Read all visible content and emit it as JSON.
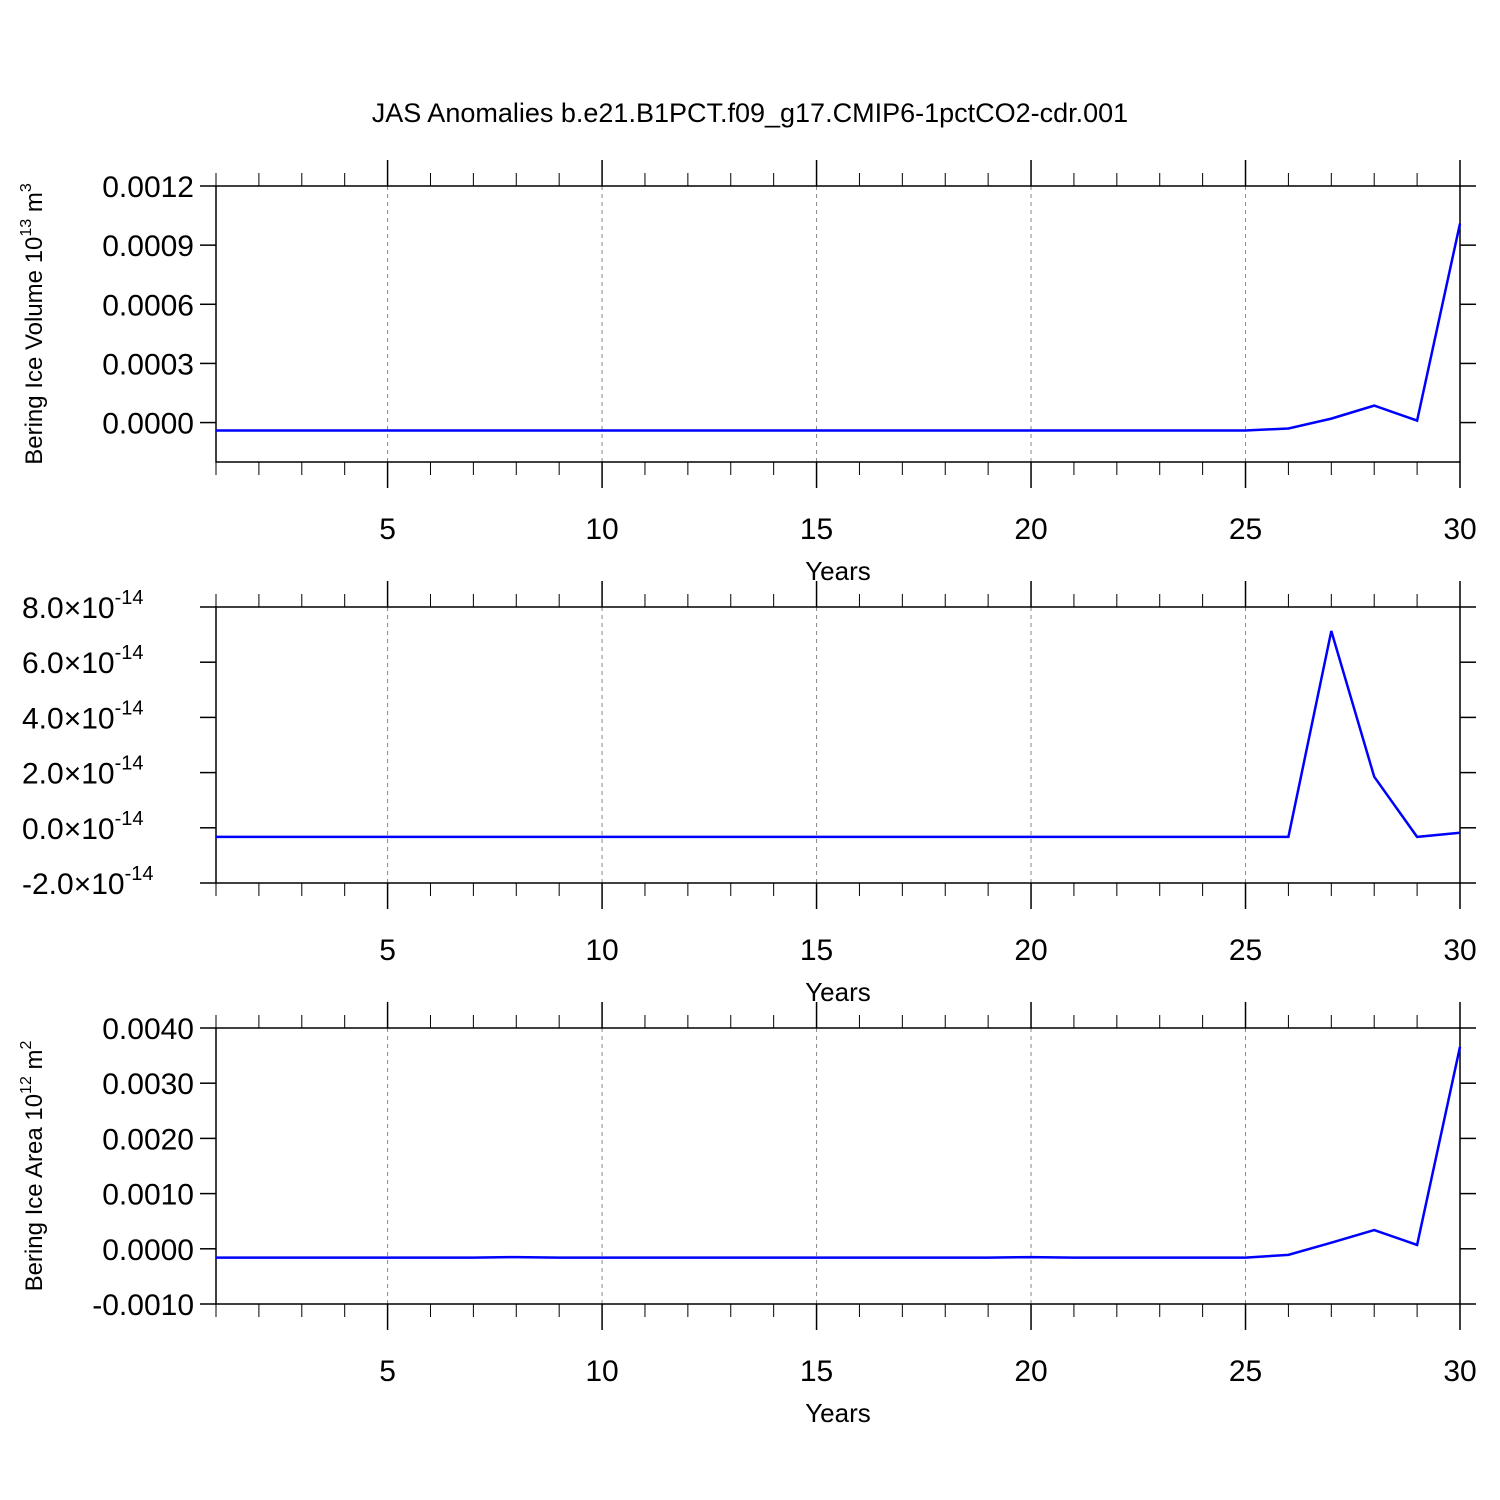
{
  "chart_data": [
    {
      "type": "line",
      "title": "JAS Anomalies b.e21.B1PCT.f09_g17.CMIP6-1pctCO2-cdr.001",
      "ylabel": [
        "Bering Ice Volume 10",
        "13",
        " m",
        "3"
      ],
      "xlabel": "Years",
      "x": [
        1,
        2,
        3,
        4,
        5,
        6,
        7,
        8,
        9,
        10,
        11,
        12,
        13,
        14,
        15,
        16,
        17,
        18,
        19,
        20,
        21,
        22,
        23,
        24,
        25,
        26,
        27,
        28,
        29,
        30
      ],
      "values": [
        -4e-05,
        -4e-05,
        -4e-05,
        -4e-05,
        -4e-05,
        -4e-05,
        -4e-05,
        -4e-05,
        -4e-05,
        -4e-05,
        -4e-05,
        -4e-05,
        -4e-05,
        -4e-05,
        -4e-05,
        -4e-05,
        -4e-05,
        -4e-05,
        -4e-05,
        -4e-05,
        -4e-05,
        -4e-05,
        -4e-05,
        -4e-05,
        -4e-05,
        -3e-05,
        2e-05,
        8.6e-05,
        1e-05,
        0.00101
      ],
      "color": "#0000ff",
      "xlim": [
        1,
        30
      ],
      "xticks": [
        5,
        10,
        15,
        20,
        25,
        30
      ],
      "xminorticks": [
        1,
        2,
        3,
        4,
        6,
        7,
        8,
        9,
        11,
        12,
        13,
        14,
        16,
        17,
        18,
        19,
        21,
        22,
        23,
        24,
        26,
        27,
        28,
        29
      ],
      "ylim": [
        -0.0002,
        0.0012
      ],
      "yticks": [
        {
          "value": 0,
          "label": "0.0000"
        },
        {
          "value": 0.0003,
          "label": "0.0003"
        },
        {
          "value": 0.0006,
          "label": "0.0006"
        },
        {
          "value": 0.0009,
          "label": "0.0009"
        },
        {
          "value": 0.0012,
          "label": "0.0012"
        }
      ],
      "grid": true
    },
    {
      "type": "line",
      "xlabel": "Years",
      "x": [
        1,
        2,
        3,
        4,
        5,
        6,
        7,
        8,
        9,
        10,
        11,
        12,
        13,
        14,
        15,
        16,
        17,
        18,
        19,
        20,
        21,
        22,
        23,
        24,
        25,
        26,
        27,
        28,
        29,
        30
      ],
      "values": [
        -3.3e-15,
        -3.3e-15,
        -3.3e-15,
        -3.3e-15,
        -3.3e-15,
        -3.3e-15,
        -3.3e-15,
        -3.3e-15,
        -3.3e-15,
        -3.3e-15,
        -3.3e-15,
        -3.3e-15,
        -3.3e-15,
        -3.3e-15,
        -3.3e-15,
        -3.3e-15,
        -3.3e-15,
        -3.3e-15,
        -3.3e-15,
        -3.3e-15,
        -3.3e-15,
        -3.3e-15,
        -3.3e-15,
        -3.3e-15,
        -3.3e-15,
        -3.3e-15,
        7.13e-14,
        1.85e-14,
        -3.3e-15,
        -1.8e-15
      ],
      "color": "#0000ff",
      "xlim": [
        1,
        30
      ],
      "xticks": [
        5,
        10,
        15,
        20,
        25,
        30
      ],
      "xminorticks": [
        1,
        2,
        3,
        4,
        6,
        7,
        8,
        9,
        11,
        12,
        13,
        14,
        16,
        17,
        18,
        19,
        21,
        22,
        23,
        24,
        26,
        27,
        28,
        29
      ],
      "ylim": [
        -2e-14,
        8e-14
      ],
      "yticks": [
        {
          "value": -2e-14,
          "label": [
            "-2.0×10",
            "-14"
          ]
        },
        {
          "value": 0,
          "label": [
            "0.0×10",
            "-14"
          ]
        },
        {
          "value": 2e-14,
          "label": [
            "2.0×10",
            "-14"
          ]
        },
        {
          "value": 4e-14,
          "label": [
            "4.0×10",
            "-14"
          ]
        },
        {
          "value": 6e-14,
          "label": [
            "6.0×10",
            "-14"
          ]
        },
        {
          "value": 8e-14,
          "label": [
            "8.0×10",
            "-14"
          ]
        }
      ],
      "grid": true
    },
    {
      "type": "line",
      "ylabel": [
        "Bering Ice Area 10",
        "12",
        " m",
        "2"
      ],
      "xlabel": "Years",
      "x": [
        1,
        2,
        3,
        4,
        5,
        6,
        7,
        8,
        9,
        10,
        11,
        12,
        13,
        14,
        15,
        16,
        17,
        18,
        19,
        20,
        21,
        22,
        23,
        24,
        25,
        26,
        27,
        28,
        29,
        30
      ],
      "values": [
        -0.00016,
        -0.00016,
        -0.00016,
        -0.00016,
        -0.00016,
        -0.00016,
        -0.00016,
        -0.00015,
        -0.00016,
        -0.00016,
        -0.00016,
        -0.00016,
        -0.00016,
        -0.00016,
        -0.00016,
        -0.00016,
        -0.00016,
        -0.00016,
        -0.00016,
        -0.00015,
        -0.00016,
        -0.00016,
        -0.00016,
        -0.00016,
        -0.00016,
        -0.00011,
        0.00011,
        0.00034,
        7e-05,
        0.00366
      ],
      "color": "#0000ff",
      "xlim": [
        1,
        30
      ],
      "xticks": [
        5,
        10,
        15,
        20,
        25,
        30
      ],
      "xminorticks": [
        1,
        2,
        3,
        4,
        6,
        7,
        8,
        9,
        11,
        12,
        13,
        14,
        16,
        17,
        18,
        19,
        21,
        22,
        23,
        24,
        26,
        27,
        28,
        29
      ],
      "ylim": [
        -0.001,
        0.004
      ],
      "yticks": [
        {
          "value": -0.001,
          "label": "-0.0010"
        },
        {
          "value": 0,
          "label": "0.0000"
        },
        {
          "value": 0.001,
          "label": "0.0010"
        },
        {
          "value": 0.002,
          "label": "0.0020"
        },
        {
          "value": 0.003,
          "label": "0.0030"
        },
        {
          "value": 0.004,
          "label": "0.0040"
        }
      ],
      "grid": true
    }
  ]
}
